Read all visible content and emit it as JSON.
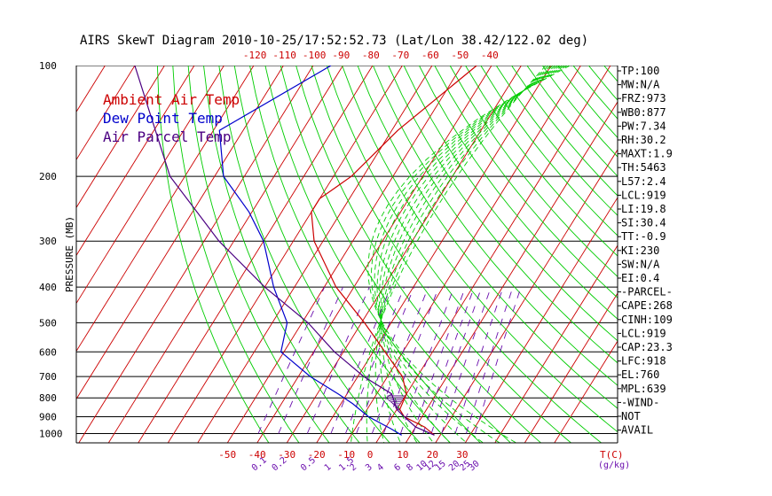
{
  "title": "AIRS SkewT Diagram 2010-10-25/17:52:52.73 (Lat/Lon 38.42/122.02 deg)",
  "colors": {
    "ambient": "#cc0000",
    "dewpoint": "#0000cc",
    "parcel": "#4b0082",
    "isotherm": "#cc0000",
    "dry_adiabat": "#00cc00",
    "moist_adiabat": "#00cc00",
    "mixing_ratio": "#6a0dad",
    "pressure_line": "#000000"
  },
  "chart_data": {
    "type": "line",
    "title": "AIRS SkewT Diagram 2010-10-25/17:52:52.73 (Lat/Lon 38.42/122.02 deg)",
    "ylabel": "PRESSURE (MB)",
    "xlabel_right": "T(C)",
    "mixing_ratio_label": "(g/kg)",
    "pressure_ticks": [
      "100",
      "200",
      "300",
      "400",
      "500",
      "600",
      "700",
      "800",
      "900",
      "1000"
    ],
    "pressure_values": [
      100,
      200,
      300,
      400,
      500,
      600,
      700,
      800,
      900,
      1000
    ],
    "top_temp_ticks": [
      -120,
      -110,
      -100,
      -90,
      -80,
      -70,
      -60,
      -50,
      -40
    ],
    "bottom_temp_ticks": [
      -50,
      -40,
      -30,
      -20,
      -10,
      0,
      10,
      20,
      30
    ],
    "mixing_ratio_ticks": [
      "0.1",
      "0.2",
      "0.5",
      "1",
      "1.5",
      "2",
      "3",
      "4",
      "6",
      "8",
      "10",
      "12",
      "15",
      "20",
      "25",
      "30"
    ],
    "legend": [
      {
        "label": "Ambient Air Temp",
        "color": "#cc0000"
      },
      {
        "label": "Dew Point Temp",
        "color": "#0000cc"
      },
      {
        "label": "Air Parcel Temp",
        "color": "#4b0082"
      }
    ],
    "series": [
      {
        "name": "Ambient Air Temp",
        "points": [
          [
            100,
            -45
          ],
          [
            150,
            -58
          ],
          [
            200,
            -64
          ],
          [
            230,
            -70
          ],
          [
            250,
            -70
          ],
          [
            300,
            -63
          ],
          [
            400,
            -46
          ],
          [
            500,
            -29
          ],
          [
            600,
            -16
          ],
          [
            700,
            -5
          ],
          [
            780,
            0
          ],
          [
            860,
            1
          ],
          [
            900,
            4
          ],
          [
            960,
            13
          ],
          [
            1010,
            18
          ]
        ]
      },
      {
        "name": "Dew Point Temp",
        "points": [
          [
            100,
            -94
          ],
          [
            150,
            -118
          ],
          [
            200,
            -107
          ],
          [
            250,
            -91
          ],
          [
            300,
            -80
          ],
          [
            400,
            -67
          ],
          [
            500,
            -55
          ],
          [
            600,
            -51
          ],
          [
            700,
            -36
          ],
          [
            780,
            -23
          ],
          [
            830,
            -16
          ],
          [
            900,
            -8
          ],
          [
            970,
            2
          ],
          [
            1010,
            7
          ]
        ]
      },
      {
        "name": "Air Parcel Temp",
        "points": [
          [
            100,
            -160
          ],
          [
            200,
            -125
          ],
          [
            300,
            -95
          ],
          [
            400,
            -70
          ],
          [
            500,
            -48
          ],
          [
            600,
            -33
          ],
          [
            700,
            -18
          ],
          [
            780,
            -5
          ],
          [
            860,
            0
          ],
          [
            900,
            4
          ],
          [
            960,
            10
          ],
          [
            1010,
            18
          ]
        ]
      }
    ],
    "indices": [
      "TP:100",
      "MW:N/A",
      "FRZ:973",
      "WB0:877",
      "PW:7.34",
      "RH:30.2",
      "MAXT:1.9",
      "TH:5463",
      "L57:2.4",
      "LCL:919",
      "LI:19.8",
      "SI:30.4",
      "TT:-0.9",
      "KI:230",
      "SW:N/A",
      "EI:0.4",
      "-PARCEL-",
      "CAPE:268",
      "CINH:109",
      "LCL:919",
      "CAP:23.3",
      "LFC:918",
      "EL:760",
      "MPL:639",
      "-WIND-",
      "NOT",
      "AVAIL"
    ]
  }
}
